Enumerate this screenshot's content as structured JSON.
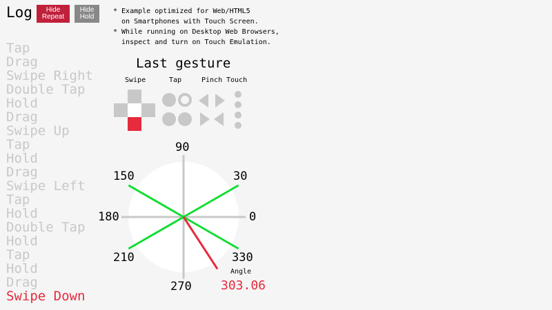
{
  "header": {
    "title": "Log",
    "hide_repeat": "Hide\nRepeat",
    "hide_repeat_lines": [
      "Hide",
      "Repeat"
    ],
    "hide_hold_lines": [
      "Hide",
      "Hold"
    ]
  },
  "notes": [
    "* Example optimized for Web/HTML5",
    "  on Smartphones with Touch Screen.",
    "* While running on Desktop Web Browsers,",
    "  inspect and turn on Touch Emulation."
  ],
  "log": [
    "Tap",
    "Drag",
    "Swipe Right",
    "Double Tap",
    "Hold",
    "Drag",
    "Swipe Up",
    "Tap",
    "Hold",
    "Drag",
    "Swipe Left",
    "Tap",
    "Hold",
    "Double Tap",
    "Hold",
    "Tap",
    "Hold",
    "Drag",
    "Swipe Down"
  ],
  "gesture": {
    "title": "Last gesture",
    "headers": [
      "Swipe",
      "Tap",
      "Pinch",
      "Touch"
    ],
    "active_swipe": "down"
  },
  "dial": {
    "ticks": [
      "0",
      "30",
      "90",
      "150",
      "180",
      "210",
      "270",
      "330"
    ],
    "angle_label": "Angle",
    "angle_value": "303.06",
    "angle": 303.06,
    "green_angles": [
      30,
      150,
      210,
      330
    ]
  },
  "colors": {
    "accent": "#e52b3c",
    "green": "#11dd33",
    "gray": "#c8c8c8",
    "repeat_button": "#c0203a",
    "hold_button": "#888888"
  }
}
